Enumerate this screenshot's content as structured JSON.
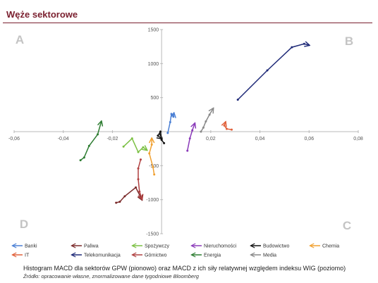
{
  "title": "Węże sektorowe",
  "caption": "Histogram MACD dla sektorów GPW (pionowo) oraz MACD z ich siły relatywnej względem indeksu WIG (poziomo)",
  "source": "Źródło: opracowanie własne, znormalizowane dane tygodniowe Bloomberg",
  "chart_data": {
    "type": "line",
    "quadrants": [
      "A",
      "B",
      "C",
      "D"
    ],
    "xlim": [
      -0.06,
      0.08
    ],
    "ylim": [
      -1500,
      1500
    ],
    "x_ticks": [
      -0.06,
      -0.04,
      -0.02,
      0,
      0.02,
      0.04,
      0.06,
      0.08
    ],
    "x_tick_labels": [
      "-0,06",
      "-0,04",
      "-0,02",
      "0",
      "0,02",
      "0,04",
      "0,06",
      "0,08"
    ],
    "y_ticks": [
      -1500,
      -1000,
      -500,
      500,
      1000,
      1500
    ],
    "y_tick_labels": [
      "-1500",
      "-1000",
      "-500",
      "500",
      "1000",
      "1500"
    ],
    "series": [
      {
        "name": "Banki",
        "color": "#4a7fd4",
        "x": [
          0.0025,
          0.0035,
          0.004,
          0.0048,
          0.005
        ],
        "y": [
          -20,
          140,
          260,
          220,
          270
        ]
      },
      {
        "name": "Paliwa",
        "color": "#7a2a2a",
        "x": [
          -0.0185,
          -0.017,
          -0.015,
          -0.0105,
          -0.008
        ],
        "y": [
          -1045,
          -1030,
          -950,
          -820,
          -1000
        ]
      },
      {
        "name": "Spożywczy",
        "color": "#7bc043",
        "x": [
          -0.0155,
          -0.012,
          -0.0095,
          -0.0075,
          -0.006
        ],
        "y": [
          -220,
          -100,
          -300,
          -230,
          -270
        ]
      },
      {
        "name": "Nieruchomości",
        "color": "#8a3ab9",
        "x": [
          0.0105,
          0.0115,
          0.0125,
          0.0135
        ],
        "y": [
          -280,
          -100,
          20,
          120
        ]
      },
      {
        "name": "Budowictwo",
        "color": "#111111",
        "x": [
          0.001,
          0.0,
          -0.0005,
          -0.0015,
          0.0
        ],
        "y": [
          -170,
          -120,
          0,
          -60,
          -100
        ]
      },
      {
        "name": "Chemia",
        "color": "#f0a030",
        "x": [
          -0.003,
          -0.0035,
          -0.005,
          -0.004,
          -0.004
        ],
        "y": [
          -630,
          -520,
          -320,
          -190,
          -100
        ]
      },
      {
        "name": "IT",
        "color": "#e0603a",
        "x": [
          0.0285,
          0.0265,
          0.0255,
          0.026
        ],
        "y": [
          30,
          40,
          90,
          140
        ]
      },
      {
        "name": "Telekomunikacja",
        "color": "#1f2a78",
        "x": [
          0.031,
          0.043,
          0.053,
          0.058,
          0.06
        ],
        "y": [
          470,
          900,
          1240,
          1290,
          1270
        ]
      },
      {
        "name": "Górnictwo",
        "color": "#b04040",
        "x": [
          -0.0085,
          -0.0095,
          -0.0095,
          -0.009,
          -0.008
        ],
        "y": [
          -410,
          -540,
          -700,
          -880,
          -990
        ]
      },
      {
        "name": "Energia",
        "color": "#2e7d32",
        "x": [
          -0.033,
          -0.0315,
          -0.0295,
          -0.026,
          -0.0245
        ],
        "y": [
          -420,
          -380,
          -210,
          -40,
          150
        ]
      },
      {
        "name": "Media",
        "color": "#888888",
        "x": [
          0.016,
          0.017,
          0.018,
          0.0195,
          0.021
        ],
        "y": [
          0,
          60,
          150,
          250,
          340
        ]
      }
    ]
  }
}
